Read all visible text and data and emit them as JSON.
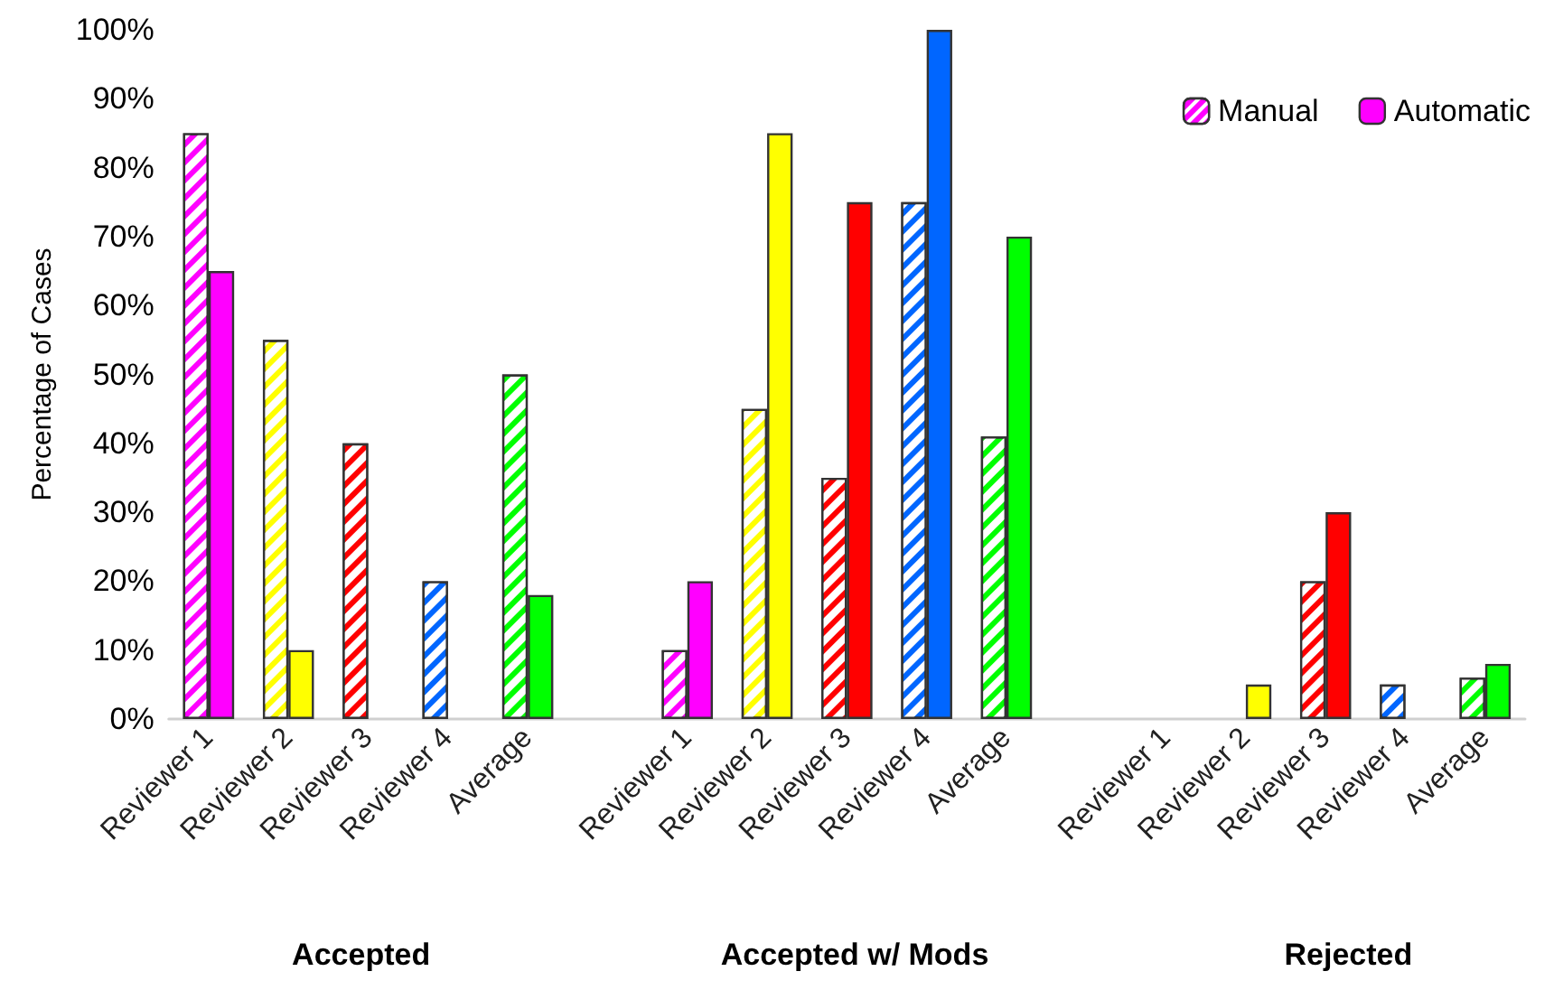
{
  "chart_data": {
    "type": "bar",
    "ylabel": "Percentage of Cases",
    "categories": [
      "Reviewer 1",
      "Reviewer 2",
      "Reviewer 3",
      "Reviewer 4",
      "Average",
      null,
      "Reviewer 1",
      "Reviewer 2",
      "Reviewer 3",
      "Reviewer 4",
      "Average",
      null,
      "Reviewer 1",
      "Reviewer 2",
      "Reviewer 3",
      "Reviewer 4",
      "Average"
    ],
    "series": [
      {
        "name": "Manual",
        "colors": [
          "#ff00ff",
          "#ffff00",
          "#ff0000",
          "#0066ff",
          "#00ff00",
          null,
          "#ff00ff",
          "#ffff00",
          "#ff0000",
          "#0066ff",
          "#00ff00",
          null,
          "#ff00ff",
          "#ffff00",
          "#ff0000",
          "#0066ff",
          "#00ff00"
        ],
        "values": [
          85,
          55,
          40,
          20,
          50,
          null,
          10,
          45,
          35,
          75,
          41,
          null,
          0,
          0,
          20,
          5,
          6
        ]
      },
      {
        "name": "Automatic",
        "colors": [
          "#ff00ff",
          "#ffff00",
          "#ff0000",
          "#0066ff",
          "#00ff00",
          null,
          "#ff00ff",
          "#ffff00",
          "#ff0000",
          "#0066ff",
          "#00ff00",
          null,
          "#ff00ff",
          "#ffff00",
          "#ff0000",
          "#0066ff",
          "#00ff00"
        ],
        "values": [
          65,
          10,
          0,
          0,
          18,
          null,
          20,
          85,
          75,
          100,
          70,
          null,
          0,
          5,
          30,
          0,
          8
        ]
      }
    ],
    "ylim": [
      0,
      100
    ],
    "yticks": [
      {
        "value": 0,
        "label": "0%"
      },
      {
        "value": 10,
        "label": "10%"
      },
      {
        "value": 20,
        "label": "20%"
      },
      {
        "value": 30,
        "label": "30%"
      },
      {
        "value": 40,
        "label": "40%"
      },
      {
        "value": 50,
        "label": "50%"
      },
      {
        "value": 60,
        "label": "60%"
      },
      {
        "value": 70,
        "label": "70%"
      },
      {
        "value": 80,
        "label": "80%"
      },
      {
        "value": 90,
        "label": "90%"
      },
      {
        "value": 100,
        "label": "100%"
      }
    ],
    "annotations": [
      "Accepted",
      "Accepted w/ Mods",
      "Rejected"
    ],
    "legend": "top right",
    "grid": false
  }
}
